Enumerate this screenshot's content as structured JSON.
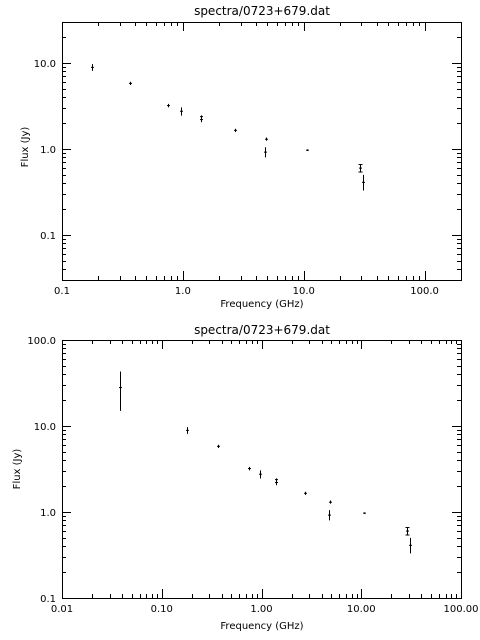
{
  "chart_data": [
    {
      "type": "scatter",
      "title": "spectra/0723+679.dat",
      "xlabel": "Frequency (GHz)",
      "ylabel": "Flux (Jy)",
      "xscale": "log",
      "yscale": "log",
      "xlim": [
        0.1,
        200
      ],
      "ylim": [
        0.03,
        30
      ],
      "grid": false,
      "x_tick_labels": [
        "0.1",
        "1.0",
        "10.0",
        "100.0"
      ],
      "y_tick_labels": [
        "0.1",
        "1.0",
        "10.0"
      ],
      "points": [
        {
          "x": 0.178,
          "y": 8.9,
          "ylo": 8.1,
          "yhi": 9.7
        },
        {
          "x": 0.365,
          "y": 5.8,
          "ylo": 5.55,
          "yhi": 6.05
        },
        {
          "x": 0.75,
          "y": 3.2,
          "ylo": 3.05,
          "yhi": 3.35
        },
        {
          "x": 0.96,
          "y": 2.75,
          "ylo": 2.45,
          "yhi": 3.05
        },
        {
          "x": 1.4,
          "y": 2.2,
          "ylo": 2.05,
          "yhi": 2.35
        },
        {
          "x": 1.41,
          "y": 2.38,
          "ylo": 2.3,
          "yhi": 2.46
        },
        {
          "x": 2.7,
          "y": 1.65,
          "ylo": 1.58,
          "yhi": 1.72
        },
        {
          "x": 4.8,
          "y": 0.92,
          "ylo": 0.8,
          "yhi": 1.05
        },
        {
          "x": 4.9,
          "y": 1.3,
          "ylo": 1.25,
          "yhi": 1.36
        },
        {
          "x": 10.7,
          "y": 0.97,
          "ylo": 0.95,
          "yhi": 0.99
        },
        {
          "x": 29.0,
          "y": 0.6,
          "ylo": 0.54,
          "yhi": 0.66
        },
        {
          "x": 31.0,
          "y": 0.41,
          "ylo": 0.33,
          "yhi": 0.5
        }
      ]
    },
    {
      "type": "scatter",
      "title": "spectra/0723+679.dat",
      "xlabel": "Frequency (GHz)",
      "ylabel": "Flux (Jy)",
      "xscale": "log",
      "yscale": "log",
      "xlim": [
        0.01,
        100
      ],
      "ylim": [
        0.1,
        100
      ],
      "grid": false,
      "x_tick_labels": [
        "0.01",
        "0.10",
        "1.00",
        "10.00",
        "100.00"
      ],
      "y_tick_labels": [
        "0.1",
        "1.0",
        "10.0",
        "100.0"
      ],
      "points": [
        {
          "x": 0.038,
          "y": 28.0,
          "ylo": 15.0,
          "yhi": 43.0
        },
        {
          "x": 0.178,
          "y": 8.9,
          "ylo": 8.1,
          "yhi": 9.7
        },
        {
          "x": 0.365,
          "y": 5.8,
          "ylo": 5.55,
          "yhi": 6.05
        },
        {
          "x": 0.75,
          "y": 3.2,
          "ylo": 3.05,
          "yhi": 3.35
        },
        {
          "x": 0.96,
          "y": 2.75,
          "ylo": 2.45,
          "yhi": 3.05
        },
        {
          "x": 1.4,
          "y": 2.2,
          "ylo": 2.05,
          "yhi": 2.35
        },
        {
          "x": 1.41,
          "y": 2.38,
          "ylo": 2.3,
          "yhi": 2.46
        },
        {
          "x": 2.7,
          "y": 1.65,
          "ylo": 1.58,
          "yhi": 1.72
        },
        {
          "x": 4.8,
          "y": 0.92,
          "ylo": 0.8,
          "yhi": 1.05
        },
        {
          "x": 4.9,
          "y": 1.3,
          "ylo": 1.25,
          "yhi": 1.36
        },
        {
          "x": 10.7,
          "y": 0.97,
          "ylo": 0.95,
          "yhi": 0.99
        },
        {
          "x": 29.0,
          "y": 0.6,
          "ylo": 0.54,
          "yhi": 0.66
        },
        {
          "x": 31.0,
          "y": 0.41,
          "ylo": 0.33,
          "yhi": 0.5
        }
      ]
    }
  ]
}
